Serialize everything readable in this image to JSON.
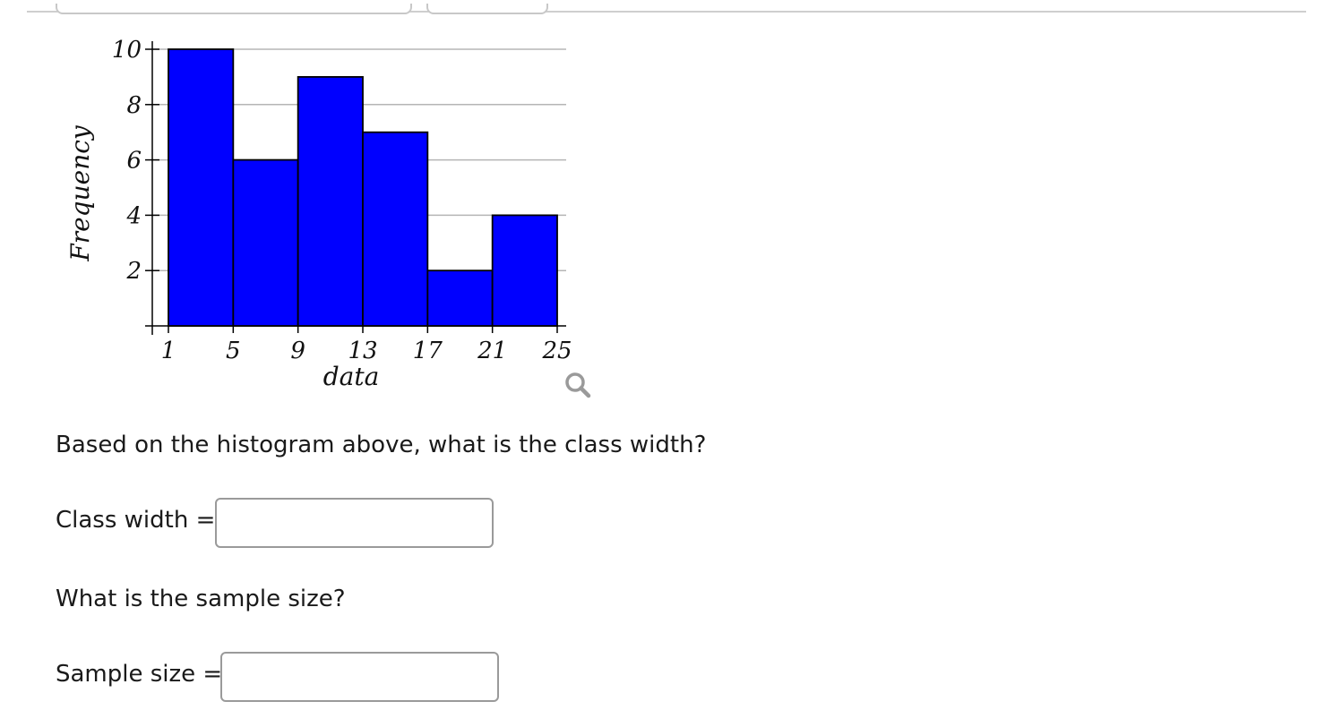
{
  "chart_data": {
    "type": "bar",
    "bin_edges": [
      1,
      5,
      9,
      13,
      17,
      21,
      25
    ],
    "values": [
      10,
      6,
      9,
      7,
      2,
      4
    ],
    "x_ticks": [
      "1",
      "5",
      "9",
      "13",
      "17",
      "21",
      "25"
    ],
    "y_ticks": [
      "2",
      "4",
      "6",
      "8",
      "10"
    ],
    "xlabel": "data",
    "ylabel": "Frequency",
    "ylim": [
      0,
      10
    ],
    "xlim": [
      1,
      25
    ],
    "grid": true,
    "bar_color": "#0000ff",
    "edge_color": "#000000"
  },
  "zoom_icon": "magnifier-icon",
  "question1": "Based on the histogram above, what is the class width?",
  "class_width": {
    "label": "Class width =",
    "value": ""
  },
  "question2": "What is the sample size?",
  "sample_size": {
    "label": "Sample size =",
    "value": ""
  }
}
